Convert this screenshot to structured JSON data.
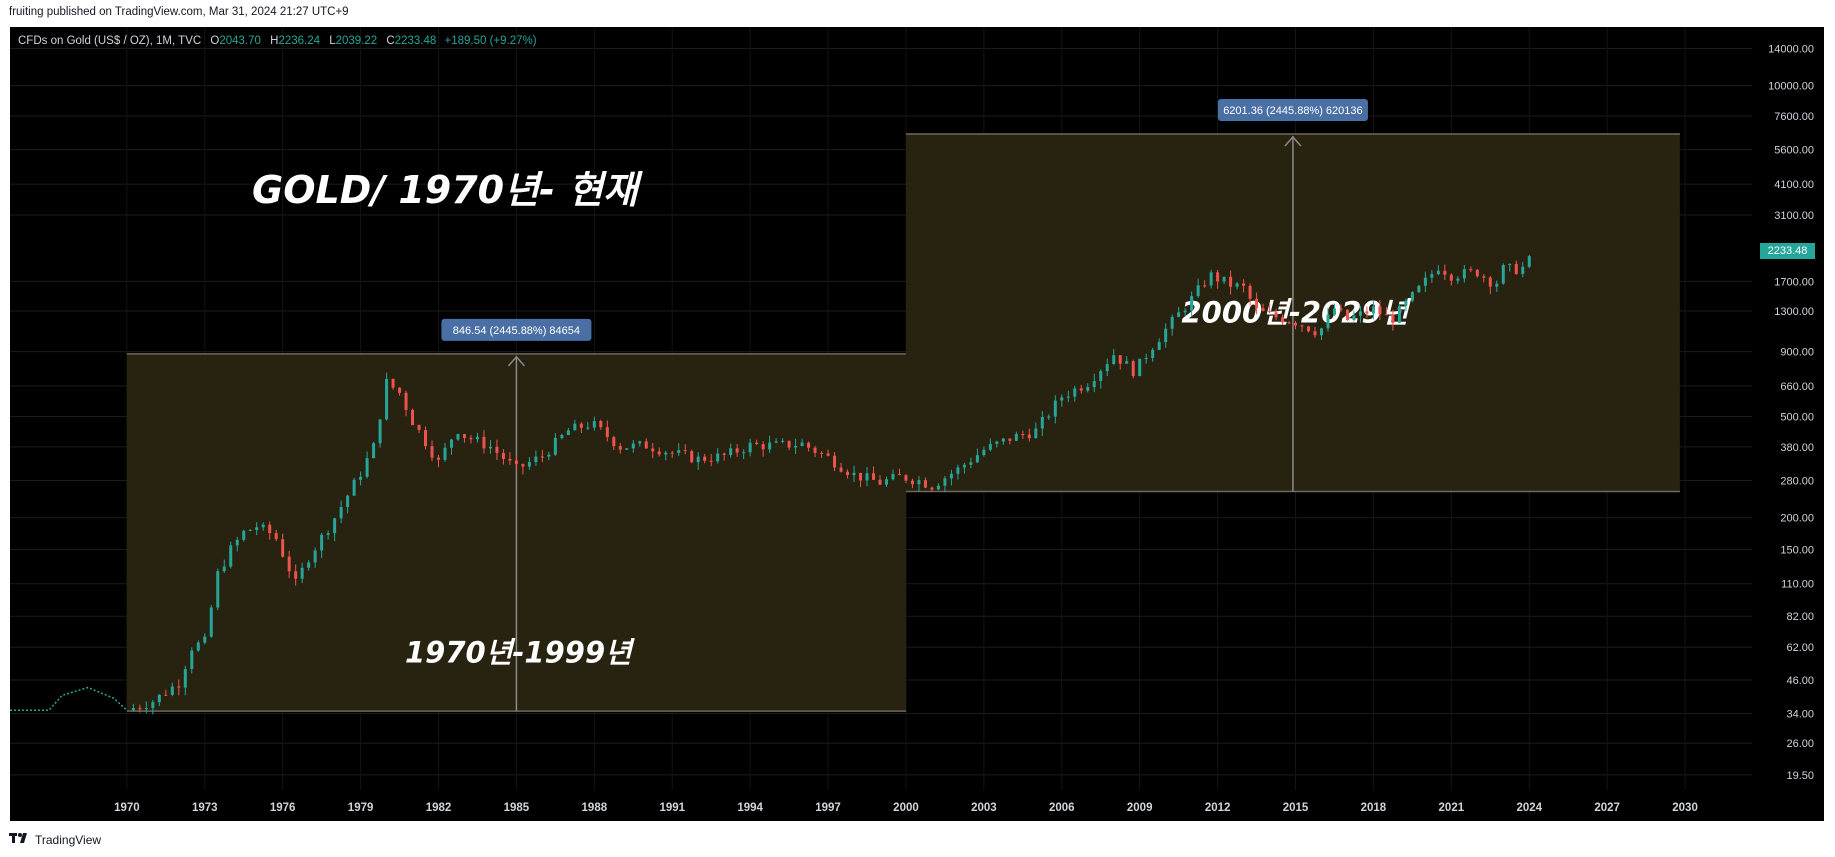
{
  "header": {
    "published": "fruiting published on TradingView.com, Mar 31, 2024 21:27 UTC+9"
  },
  "legend": {
    "symbol": "CFDs on Gold (US$ / OZ), 1M, TVC",
    "open_label": "O",
    "open": "2043.70",
    "high_label": "H",
    "high": "2236.24",
    "low_label": "L",
    "low": "2039.22",
    "close_label": "C",
    "close": "2233.48",
    "change": "+189.50 (+9.27%)"
  },
  "last_price": "2233.48",
  "footer": {
    "brand": "TradingView",
    "logo": "tv-logo-icon"
  },
  "colors": {
    "up": "#26a69a",
    "down": "#ef5350",
    "box_fill": "#2a2511",
    "measure": "#4a6fa5"
  },
  "chart_data": {
    "type": "candlestick",
    "title": "GOLD/ 1970년- 현재",
    "y_scale": "log",
    "ylim": [
      17,
      17000
    ],
    "xlim": [
      1965.5,
      2032.5
    ],
    "y_ticks": [
      "14000.00",
      "10000.00",
      "7600.00",
      "5600.00",
      "4100.00",
      "3100.00",
      "1700.00",
      "1300.00",
      "900.00",
      "660.00",
      "500.00",
      "380.00",
      "280.00",
      "200.00",
      "150.00",
      "110.00",
      "82.00",
      "62.00",
      "46.00",
      "34.00",
      "26.00",
      "19.50"
    ],
    "x_ticks": [
      "1970",
      "1973",
      "1976",
      "1979",
      "1982",
      "1985",
      "1988",
      "1991",
      "1994",
      "1997",
      "2000",
      "2003",
      "2006",
      "2009",
      "2012",
      "2015",
      "2018",
      "2021",
      "2024",
      "2027",
      "2030"
    ],
    "series": [
      {
        "points": [
          {
            "x": 1970.0,
            "y": 35
          },
          {
            "x": 1971.0,
            "y": 38
          },
          {
            "x": 1972.0,
            "y": 45
          },
          {
            "x": 1972.5,
            "y": 62
          },
          {
            "x": 1973.0,
            "y": 65
          },
          {
            "x": 1973.5,
            "y": 120
          },
          {
            "x": 1974.0,
            "y": 150
          },
          {
            "x": 1974.5,
            "y": 175
          },
          {
            "x": 1975.0,
            "y": 185
          },
          {
            "x": 1975.7,
            "y": 170
          },
          {
            "x": 1976.5,
            "y": 110
          },
          {
            "x": 1977.0,
            "y": 140
          },
          {
            "x": 1978.0,
            "y": 200
          },
          {
            "x": 1979.0,
            "y": 300
          },
          {
            "x": 1979.5,
            "y": 380
          },
          {
            "x": 1980.0,
            "y": 680
          },
          {
            "x": 1980.5,
            "y": 620
          },
          {
            "x": 1981.0,
            "y": 480
          },
          {
            "x": 1982.0,
            "y": 330
          },
          {
            "x": 1982.7,
            "y": 450
          },
          {
            "x": 1983.0,
            "y": 420
          },
          {
            "x": 1984.0,
            "y": 380
          },
          {
            "x": 1985.0,
            "y": 310
          },
          {
            "x": 1986.0,
            "y": 350
          },
          {
            "x": 1987.0,
            "y": 440
          },
          {
            "x": 1987.9,
            "y": 470
          },
          {
            "x": 1989.0,
            "y": 380
          },
          {
            "x": 1990.0,
            "y": 385
          },
          {
            "x": 1991.0,
            "y": 360
          },
          {
            "x": 1992.0,
            "y": 340
          },
          {
            "x": 1993.0,
            "y": 350
          },
          {
            "x": 1994.0,
            "y": 385
          },
          {
            "x": 1995.0,
            "y": 385
          },
          {
            "x": 1996.0,
            "y": 390
          },
          {
            "x": 1997.0,
            "y": 345
          },
          {
            "x": 1998.0,
            "y": 295
          },
          {
            "x": 1999.0,
            "y": 275
          },
          {
            "x": 1999.8,
            "y": 290
          },
          {
            "x": 2000.5,
            "y": 280
          },
          {
            "x": 2001.0,
            "y": 268
          },
          {
            "x": 2002.0,
            "y": 310
          },
          {
            "x": 2003.0,
            "y": 370
          },
          {
            "x": 2004.0,
            "y": 410
          },
          {
            "x": 2005.0,
            "y": 440
          },
          {
            "x": 2006.0,
            "y": 600
          },
          {
            "x": 2007.0,
            "y": 680
          },
          {
            "x": 2008.0,
            "y": 880
          },
          {
            "x": 2008.8,
            "y": 750
          },
          {
            "x": 2009.5,
            "y": 950
          },
          {
            "x": 2010.0,
            "y": 1100
          },
          {
            "x": 2011.0,
            "y": 1450
          },
          {
            "x": 2011.7,
            "y": 1800
          },
          {
            "x": 2012.5,
            "y": 1650
          },
          {
            "x": 2013.0,
            "y": 1600
          },
          {
            "x": 2013.5,
            "y": 1300
          },
          {
            "x": 2014.0,
            "y": 1250
          },
          {
            "x": 2015.0,
            "y": 1180
          },
          {
            "x": 2015.9,
            "y": 1070
          },
          {
            "x": 2016.5,
            "y": 1330
          },
          {
            "x": 2017.0,
            "y": 1200
          },
          {
            "x": 2018.0,
            "y": 1320
          },
          {
            "x": 2018.7,
            "y": 1200
          },
          {
            "x": 2019.5,
            "y": 1480
          },
          {
            "x": 2020.5,
            "y": 1950
          },
          {
            "x": 2021.0,
            "y": 1800
          },
          {
            "x": 2022.0,
            "y": 1850
          },
          {
            "x": 2022.7,
            "y": 1650
          },
          {
            "x": 2023.0,
            "y": 1900
          },
          {
            "x": 2023.7,
            "y": 1900
          },
          {
            "x": 2024.0,
            "y": 2050
          },
          {
            "x": 2024.2,
            "y": 2233
          }
        ]
      }
    ],
    "annotations": [
      {
        "kind": "range",
        "x0": 1970.0,
        "x1": 2000.0,
        "y0": 34.7,
        "y1": 881.2,
        "label": "846.54 (2445.88%) 84654",
        "text": "1970년-1999년"
      },
      {
        "kind": "range",
        "x0": 2000.0,
        "x1": 2029.8,
        "y0": 253.6,
        "y1": 6455,
        "label": "6201.36 (2445.88%) 620136",
        "text": "2000년-2029년"
      }
    ]
  }
}
